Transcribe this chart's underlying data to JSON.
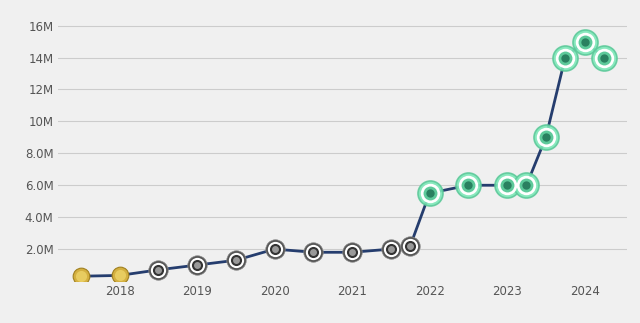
{
  "x": [
    2017.5,
    2018.0,
    2018.5,
    2019.0,
    2019.5,
    2020.0,
    2020.5,
    2021.0,
    2021.5,
    2021.75,
    2022.0,
    2022.5,
    2023.0,
    2023.25,
    2023.5,
    2023.75,
    2024.0,
    2024.25
  ],
  "y": [
    300000,
    350000,
    700000,
    1000000,
    1300000,
    2000000,
    1800000,
    1800000,
    2000000,
    2200000,
    5500000,
    6000000,
    6000000,
    6000000,
    9000000,
    14000000,
    15000000,
    14000000
  ],
  "yticks": [
    0,
    2000000,
    4000000,
    6000000,
    8000000,
    10000000,
    12000000,
    14000000,
    16000000
  ],
  "ytick_labels": [
    "",
    "2.0M",
    "4.0M",
    "6.0M",
    "8.0M",
    "10M",
    "12M",
    "14M",
    "16M"
  ],
  "xticks": [
    2018,
    2019,
    2020,
    2021,
    2022,
    2023,
    2024
  ],
  "line_color": "#253d6e",
  "background_color": "#f0f0f0",
  "grid_color": "#cccccc",
  "ylim": [
    0,
    17000000
  ],
  "xlim": [
    2017.2,
    2024.55
  ],
  "early_indices": [
    0,
    1
  ],
  "mid_indices": [
    2,
    3,
    4,
    5,
    6,
    7,
    8,
    9
  ],
  "late_indices": [
    10,
    11,
    12,
    13,
    14,
    15,
    16,
    17
  ],
  "marker_size_early": 9,
  "marker_size_mid": 10,
  "marker_size_late": 14,
  "green_outer": "#7de8b8",
  "green_inner": "#5dc99a",
  "green_dark": "#2a8060"
}
